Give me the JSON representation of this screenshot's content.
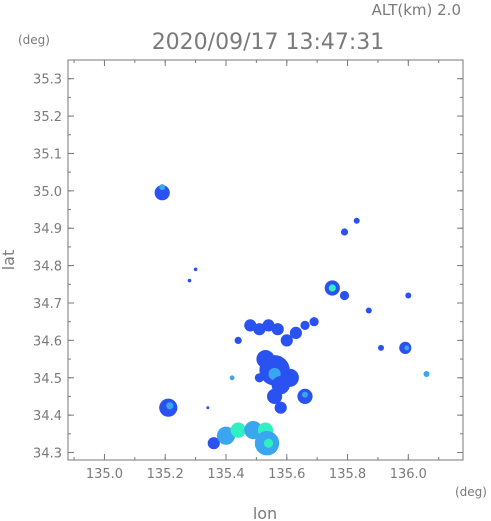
{
  "header": {
    "altitude_label": "ALT(km) 2.0",
    "timestamp": "2020/09/17 13:47:31"
  },
  "axes": {
    "y_unit": "(deg)",
    "x_unit": "(deg)",
    "xlabel": "lon",
    "ylabel": "lat",
    "x_ticks": [
      "135.0",
      "135.2",
      "135.4",
      "135.6",
      "135.8",
      "136.0"
    ],
    "y_ticks": [
      "34.3",
      "34.4",
      "34.5",
      "34.6",
      "34.7",
      "34.8",
      "34.9",
      "35.0",
      "35.1",
      "35.2",
      "35.3"
    ]
  },
  "map": {
    "x_range": [
      134.88,
      136.18
    ],
    "y_range": [
      34.28,
      35.35
    ],
    "colors": {
      "low": "#2a52f0",
      "mid": "#3aa6f0",
      "high": "#2ef0c0",
      "frame": "#7a7a7a"
    },
    "echoes": [
      {
        "lon": 135.19,
        "lat": 34.995,
        "r": 0.025,
        "level": "low"
      },
      {
        "lon": 135.19,
        "lat": 35.01,
        "r": 0.01,
        "level": "mid"
      },
      {
        "lon": 135.21,
        "lat": 34.42,
        "r": 0.03,
        "level": "low"
      },
      {
        "lon": 135.215,
        "lat": 34.425,
        "r": 0.012,
        "level": "mid"
      },
      {
        "lon": 135.36,
        "lat": 34.325,
        "r": 0.02,
        "level": "low"
      },
      {
        "lon": 135.4,
        "lat": 34.345,
        "r": 0.03,
        "level": "mid"
      },
      {
        "lon": 135.44,
        "lat": 34.36,
        "r": 0.025,
        "level": "high"
      },
      {
        "lon": 135.49,
        "lat": 34.36,
        "r": 0.03,
        "level": "mid"
      },
      {
        "lon": 135.53,
        "lat": 34.36,
        "r": 0.025,
        "level": "high"
      },
      {
        "lon": 135.535,
        "lat": 34.325,
        "r": 0.04,
        "level": "mid"
      },
      {
        "lon": 135.54,
        "lat": 34.325,
        "r": 0.015,
        "level": "high"
      },
      {
        "lon": 135.56,
        "lat": 34.52,
        "r": 0.05,
        "level": "low"
      },
      {
        "lon": 135.56,
        "lat": 34.51,
        "r": 0.02,
        "level": "mid"
      },
      {
        "lon": 135.53,
        "lat": 34.55,
        "r": 0.03,
        "level": "low"
      },
      {
        "lon": 135.58,
        "lat": 34.48,
        "r": 0.03,
        "level": "low"
      },
      {
        "lon": 135.61,
        "lat": 34.5,
        "r": 0.03,
        "level": "low"
      },
      {
        "lon": 135.56,
        "lat": 34.45,
        "r": 0.025,
        "level": "low"
      },
      {
        "lon": 135.58,
        "lat": 34.42,
        "r": 0.02,
        "level": "low"
      },
      {
        "lon": 135.51,
        "lat": 34.5,
        "r": 0.015,
        "level": "low"
      },
      {
        "lon": 135.66,
        "lat": 34.45,
        "r": 0.025,
        "level": "low"
      },
      {
        "lon": 135.66,
        "lat": 34.455,
        "r": 0.01,
        "level": "mid"
      },
      {
        "lon": 135.48,
        "lat": 34.64,
        "r": 0.02,
        "level": "low"
      },
      {
        "lon": 135.51,
        "lat": 34.63,
        "r": 0.02,
        "level": "low"
      },
      {
        "lon": 135.54,
        "lat": 34.64,
        "r": 0.02,
        "level": "low"
      },
      {
        "lon": 135.57,
        "lat": 34.63,
        "r": 0.02,
        "level": "low"
      },
      {
        "lon": 135.6,
        "lat": 34.6,
        "r": 0.02,
        "level": "low"
      },
      {
        "lon": 135.63,
        "lat": 34.62,
        "r": 0.02,
        "level": "low"
      },
      {
        "lon": 135.66,
        "lat": 34.64,
        "r": 0.015,
        "level": "low"
      },
      {
        "lon": 135.69,
        "lat": 34.65,
        "r": 0.015,
        "level": "low"
      },
      {
        "lon": 135.44,
        "lat": 34.6,
        "r": 0.012,
        "level": "low"
      },
      {
        "lon": 135.42,
        "lat": 34.5,
        "r": 0.008,
        "level": "mid"
      },
      {
        "lon": 135.75,
        "lat": 34.74,
        "r": 0.025,
        "level": "low"
      },
      {
        "lon": 135.75,
        "lat": 34.74,
        "r": 0.012,
        "level": "high"
      },
      {
        "lon": 135.79,
        "lat": 34.72,
        "r": 0.015,
        "level": "low"
      },
      {
        "lon": 135.79,
        "lat": 34.89,
        "r": 0.012,
        "level": "low"
      },
      {
        "lon": 135.83,
        "lat": 34.92,
        "r": 0.01,
        "level": "low"
      },
      {
        "lon": 135.87,
        "lat": 34.68,
        "r": 0.01,
        "level": "low"
      },
      {
        "lon": 135.91,
        "lat": 34.58,
        "r": 0.01,
        "level": "low"
      },
      {
        "lon": 136.0,
        "lat": 34.72,
        "r": 0.01,
        "level": "low"
      },
      {
        "lon": 135.99,
        "lat": 34.58,
        "r": 0.02,
        "level": "low"
      },
      {
        "lon": 135.995,
        "lat": 34.58,
        "r": 0.008,
        "level": "mid"
      },
      {
        "lon": 136.06,
        "lat": 34.51,
        "r": 0.01,
        "level": "mid"
      },
      {
        "lon": 135.28,
        "lat": 34.76,
        "r": 0.006,
        "level": "low"
      },
      {
        "lon": 135.3,
        "lat": 34.79,
        "r": 0.006,
        "level": "low"
      },
      {
        "lon": 135.34,
        "lat": 34.42,
        "r": 0.005,
        "level": "low"
      }
    ]
  }
}
